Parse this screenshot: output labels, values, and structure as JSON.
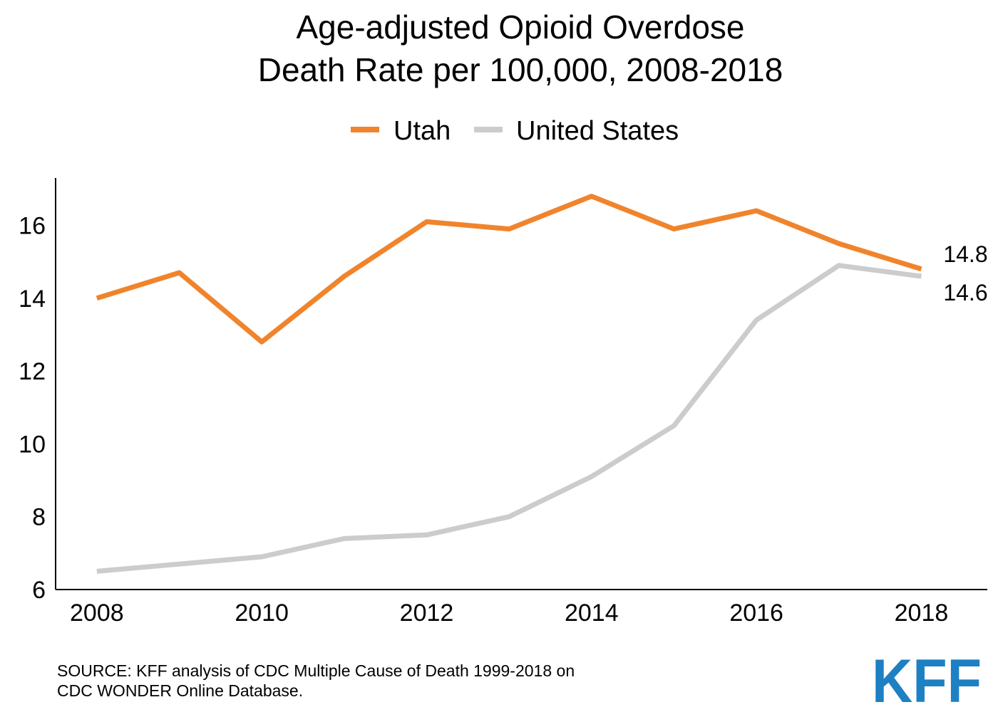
{
  "chart_data": {
    "type": "line",
    "title_lines": [
      "Age-adjusted Opioid Overdose",
      "Death Rate per 100,000, 2008-2018"
    ],
    "x": [
      2008,
      2009,
      2010,
      2011,
      2012,
      2013,
      2014,
      2015,
      2016,
      2017,
      2018
    ],
    "xticks": [
      "2008",
      "2010",
      "2012",
      "2014",
      "2016",
      "2018"
    ],
    "yticks": [
      "6",
      "8",
      "10",
      "12",
      "14",
      "16"
    ],
    "ylim": [
      6,
      17.3
    ],
    "xlim": [
      2007.5,
      2018.8
    ],
    "grid": false,
    "legend_position": "top-center",
    "series": [
      {
        "name": "Utah",
        "color": "#f0842c",
        "values": [
          14.0,
          14.7,
          12.8,
          14.6,
          16.1,
          15.9,
          16.8,
          15.9,
          16.4,
          15.5,
          14.8
        ],
        "end_label": "14.8"
      },
      {
        "name": "United States",
        "color": "#cccccc",
        "values": [
          6.5,
          6.7,
          6.9,
          7.4,
          7.5,
          8.0,
          9.1,
          10.5,
          13.4,
          14.9,
          14.6
        ],
        "end_label": "14.6"
      }
    ]
  },
  "source": {
    "line1": "SOURCE: KFF analysis of CDC Multiple Cause of Death 1999-2018 on",
    "line2": "CDC WONDER Online Database."
  },
  "logo": {
    "text": "KFF",
    "color": "#1d80c3"
  }
}
